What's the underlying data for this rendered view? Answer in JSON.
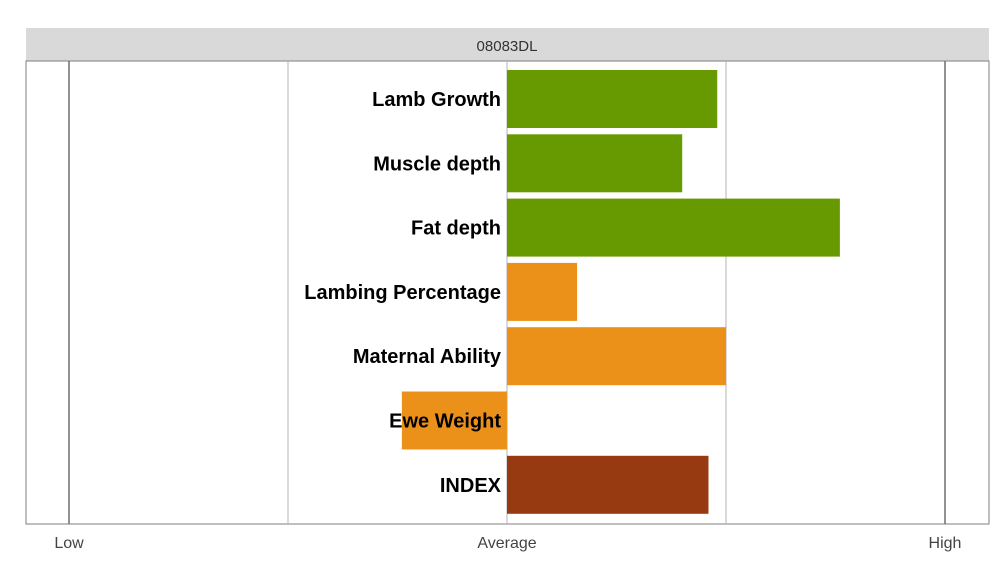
{
  "chart_data": {
    "type": "bar",
    "orientation": "horizontal",
    "title": "08083DL",
    "categories": [
      "Lamb Growth",
      "Muscle depth",
      "Fat depth",
      "Lambing Percentage",
      "Maternal Ability",
      "Ewe Weight",
      "INDEX"
    ],
    "values": [
      0.96,
      0.8,
      1.52,
      0.32,
      1.0,
      -0.48,
      0.92
    ],
    "colors": [
      "#679a01",
      "#679a01",
      "#679a01",
      "#eb9119",
      "#eb9119",
      "#eb9119",
      "#973a12"
    ],
    "xlim": [
      -2,
      2
    ],
    "tick_values": [
      -2,
      -1,
      0,
      1,
      2
    ],
    "tick_labels": [
      {
        "value": -2,
        "label": "Low"
      },
      {
        "value": 0,
        "label": "Average"
      },
      {
        "value": 2,
        "label": "High"
      }
    ],
    "grid": true
  },
  "colors": {
    "header_bg": "#d9d9d9",
    "grid": "#b3b3b3",
    "outer_grid": "#6e6e6e",
    "frame": "#7f7f7f"
  }
}
